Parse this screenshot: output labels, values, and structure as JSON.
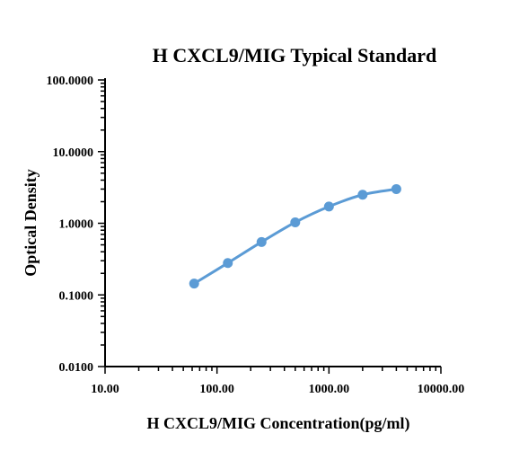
{
  "chart_data": {
    "type": "scatter",
    "title": "H CXCL9/MIG Typical Standard",
    "xlabel": "H CXCL9/MIG Concentration(pg/ml)",
    "ylabel": "Optical Density",
    "x_scale": "log",
    "y_scale": "log",
    "xlim": [
      10,
      10000
    ],
    "ylim": [
      0.01,
      100
    ],
    "x_ticks": [
      10,
      100,
      1000,
      10000
    ],
    "x_tick_labels": [
      "10.00",
      "100.00",
      "1000.00",
      "10000.00"
    ],
    "y_ticks": [
      0.01,
      0.1,
      1,
      10,
      100
    ],
    "y_tick_labels": [
      "0.0100",
      "0.1000",
      "1.0000",
      "10.0000",
      "100.0000"
    ],
    "grid": false,
    "legend": "none",
    "series": [
      {
        "x": [
          62.5,
          125,
          250,
          500,
          1000,
          2000,
          4000
        ],
        "y": [
          0.144,
          0.279,
          0.548,
          1.03,
          1.71,
          2.5,
          3.0
        ]
      }
    ],
    "colors": {
      "series": "#5b9bd5",
      "axis": "#000000"
    }
  }
}
